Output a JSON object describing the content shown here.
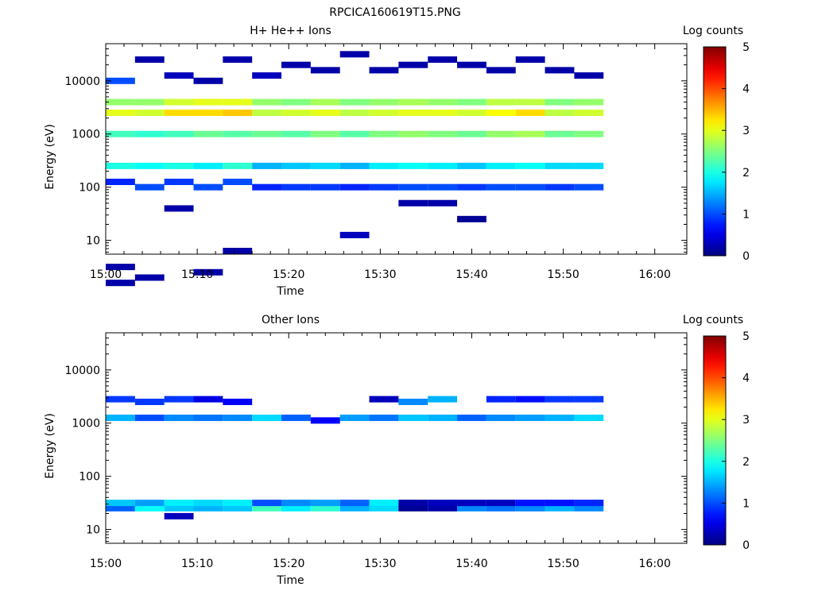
{
  "figure": {
    "title": "RPCICA160619T15.PNG"
  },
  "chart_data": [
    {
      "type": "heatmap",
      "title": "H+ He++ Ions",
      "xlabel": "Time",
      "ylabel": "Energy (eV)",
      "x_ticks": [
        "15:00",
        "15:10",
        "15:20",
        "15:30",
        "15:40",
        "15:50",
        "16:00"
      ],
      "y_ticks": [
        "10",
        "100",
        "1000",
        "10000"
      ],
      "y_scale": "log",
      "ylim": [
        5.5,
        50000
      ],
      "colorbar": {
        "label": "Log counts",
        "ticks": [
          "0",
          "1",
          "2",
          "3",
          "4",
          "5"
        ],
        "range": [
          0,
          5
        ],
        "colormap": "jet"
      },
      "x_bins_start_minutes": [
        0,
        3.2,
        6.4,
        9.6,
        12.8,
        16.0,
        19.2,
        22.4,
        25.6,
        28.8,
        32.0,
        35.2,
        38.4,
        41.6,
        44.8,
        48.0,
        51.2
      ],
      "bin_width_minutes": 3.2,
      "last_bin_end_minutes": 54.4,
      "cells": [
        {
          "x": 0,
          "e": 0.2,
          "v": 0.2
        },
        {
          "x": 0,
          "e": 0.5,
          "v": 0.2
        },
        {
          "x": 0,
          "e": 2.1,
          "v": 0.8
        },
        {
          "x": 0,
          "e": 2.4,
          "v": 2.0
        },
        {
          "x": 0,
          "e": 3.0,
          "v": 2.2
        },
        {
          "x": 0,
          "e": 3.4,
          "v": 3.0
        },
        {
          "x": 0,
          "e": 3.6,
          "v": 2.6
        },
        {
          "x": 0,
          "e": 4.0,
          "v": 1.0
        },
        {
          "x": 1,
          "e": 0.3,
          "v": 0.2
        },
        {
          "x": 1,
          "e": 2.0,
          "v": 1.0
        },
        {
          "x": 1,
          "e": 2.4,
          "v": 1.9
        },
        {
          "x": 1,
          "e": 3.0,
          "v": 2.1
        },
        {
          "x": 1,
          "e": 3.4,
          "v": 2.9
        },
        {
          "x": 1,
          "e": 3.6,
          "v": 2.6
        },
        {
          "x": 1,
          "e": 4.4,
          "v": 0.2
        },
        {
          "x": 2,
          "e": 1.6,
          "v": 0.2
        },
        {
          "x": 2,
          "e": 2.1,
          "v": 0.9
        },
        {
          "x": 2,
          "e": 2.4,
          "v": 2.0
        },
        {
          "x": 2,
          "e": 3.0,
          "v": 2.2
        },
        {
          "x": 2,
          "e": 3.4,
          "v": 3.3
        },
        {
          "x": 2,
          "e": 3.6,
          "v": 2.9
        },
        {
          "x": 2,
          "e": 4.1,
          "v": 0.3
        },
        {
          "x": 3,
          "e": 0.4,
          "v": 0.2
        },
        {
          "x": 3,
          "e": 2.0,
          "v": 1.0
        },
        {
          "x": 3,
          "e": 2.4,
          "v": 1.8
        },
        {
          "x": 3,
          "e": 3.0,
          "v": 2.4
        },
        {
          "x": 3,
          "e": 3.4,
          "v": 3.3
        },
        {
          "x": 3,
          "e": 3.6,
          "v": 3.0
        },
        {
          "x": 3,
          "e": 4.0,
          "v": 0.2
        },
        {
          "x": 4,
          "e": 0.8,
          "v": 0.2
        },
        {
          "x": 4,
          "e": 2.1,
          "v": 1.0
        },
        {
          "x": 4,
          "e": 2.4,
          "v": 2.1
        },
        {
          "x": 4,
          "e": 3.0,
          "v": 2.3
        },
        {
          "x": 4,
          "e": 3.4,
          "v": 3.4
        },
        {
          "x": 4,
          "e": 3.6,
          "v": 3.0
        },
        {
          "x": 4,
          "e": 4.4,
          "v": 0.2
        },
        {
          "x": 5,
          "e": 2.0,
          "v": 0.8
        },
        {
          "x": 5,
          "e": 2.4,
          "v": 1.5
        },
        {
          "x": 5,
          "e": 3.0,
          "v": 2.4
        },
        {
          "x": 5,
          "e": 3.4,
          "v": 2.8
        },
        {
          "x": 5,
          "e": 3.6,
          "v": 2.6
        },
        {
          "x": 5,
          "e": 4.1,
          "v": 0.3
        },
        {
          "x": 6,
          "e": 2.0,
          "v": 0.9
        },
        {
          "x": 6,
          "e": 2.4,
          "v": 1.6
        },
        {
          "x": 6,
          "e": 3.0,
          "v": 2.3
        },
        {
          "x": 6,
          "e": 3.4,
          "v": 2.9
        },
        {
          "x": 6,
          "e": 3.6,
          "v": 2.5
        },
        {
          "x": 6,
          "e": 4.3,
          "v": 0.2
        },
        {
          "x": 7,
          "e": 2.0,
          "v": 0.9
        },
        {
          "x": 7,
          "e": 2.4,
          "v": 1.7
        },
        {
          "x": 7,
          "e": 3.0,
          "v": 2.5
        },
        {
          "x": 7,
          "e": 3.4,
          "v": 3.0
        },
        {
          "x": 7,
          "e": 3.6,
          "v": 2.7
        },
        {
          "x": 7,
          "e": 4.2,
          "v": 0.2
        },
        {
          "x": 8,
          "e": 1.1,
          "v": 0.3
        },
        {
          "x": 8,
          "e": 2.0,
          "v": 0.8
        },
        {
          "x": 8,
          "e": 2.4,
          "v": 1.5
        },
        {
          "x": 8,
          "e": 3.0,
          "v": 2.3
        },
        {
          "x": 8,
          "e": 3.4,
          "v": 2.8
        },
        {
          "x": 8,
          "e": 3.6,
          "v": 2.5
        },
        {
          "x": 8,
          "e": 4.5,
          "v": 0.2
        },
        {
          "x": 9,
          "e": 2.0,
          "v": 0.9
        },
        {
          "x": 9,
          "e": 2.4,
          "v": 1.8
        },
        {
          "x": 9,
          "e": 3.0,
          "v": 2.5
        },
        {
          "x": 9,
          "e": 3.4,
          "v": 2.9
        },
        {
          "x": 9,
          "e": 3.6,
          "v": 2.6
        },
        {
          "x": 9,
          "e": 4.2,
          "v": 0.2
        },
        {
          "x": 10,
          "e": 1.7,
          "v": 0.2
        },
        {
          "x": 10,
          "e": 2.0,
          "v": 1.0
        },
        {
          "x": 10,
          "e": 2.4,
          "v": 1.9
        },
        {
          "x": 10,
          "e": 3.0,
          "v": 2.6
        },
        {
          "x": 10,
          "e": 3.4,
          "v": 3.0
        },
        {
          "x": 10,
          "e": 3.6,
          "v": 2.7
        },
        {
          "x": 10,
          "e": 4.3,
          "v": 0.2
        },
        {
          "x": 11,
          "e": 1.7,
          "v": 0.2
        },
        {
          "x": 11,
          "e": 2.0,
          "v": 1.0
        },
        {
          "x": 11,
          "e": 2.4,
          "v": 1.8
        },
        {
          "x": 11,
          "e": 3.0,
          "v": 2.5
        },
        {
          "x": 11,
          "e": 3.4,
          "v": 3.0
        },
        {
          "x": 11,
          "e": 3.6,
          "v": 2.6
        },
        {
          "x": 11,
          "e": 4.4,
          "v": 0.2
        },
        {
          "x": 12,
          "e": 1.4,
          "v": 0.1
        },
        {
          "x": 12,
          "e": 2.0,
          "v": 0.9
        },
        {
          "x": 12,
          "e": 2.4,
          "v": 1.6
        },
        {
          "x": 12,
          "e": 3.0,
          "v": 2.4
        },
        {
          "x": 12,
          "e": 3.4,
          "v": 2.9
        },
        {
          "x": 12,
          "e": 3.6,
          "v": 2.5
        },
        {
          "x": 12,
          "e": 4.3,
          "v": 0.2
        },
        {
          "x": 13,
          "e": 2.0,
          "v": 1.0
        },
        {
          "x": 13,
          "e": 2.4,
          "v": 1.8
        },
        {
          "x": 13,
          "e": 3.0,
          "v": 2.6
        },
        {
          "x": 13,
          "e": 3.4,
          "v": 3.1
        },
        {
          "x": 13,
          "e": 3.6,
          "v": 2.8
        },
        {
          "x": 13,
          "e": 4.2,
          "v": 0.2
        },
        {
          "x": 14,
          "e": 2.0,
          "v": 1.0
        },
        {
          "x": 14,
          "e": 2.4,
          "v": 1.9
        },
        {
          "x": 14,
          "e": 3.0,
          "v": 2.7
        },
        {
          "x": 14,
          "e": 3.4,
          "v": 3.3
        },
        {
          "x": 14,
          "e": 3.6,
          "v": 2.8
        },
        {
          "x": 14,
          "e": 4.4,
          "v": 0.2
        },
        {
          "x": 15,
          "e": 2.0,
          "v": 0.9
        },
        {
          "x": 15,
          "e": 2.4,
          "v": 1.7
        },
        {
          "x": 15,
          "e": 3.0,
          "v": 2.4
        },
        {
          "x": 15,
          "e": 3.4,
          "v": 2.8
        },
        {
          "x": 15,
          "e": 3.6,
          "v": 2.5
        },
        {
          "x": 15,
          "e": 4.2,
          "v": 0.2
        },
        {
          "x": 16,
          "e": 2.0,
          "v": 1.0
        },
        {
          "x": 16,
          "e": 2.4,
          "v": 1.7
        },
        {
          "x": 16,
          "e": 3.0,
          "v": 2.5
        },
        {
          "x": 16,
          "e": 3.4,
          "v": 2.9
        },
        {
          "x": 16,
          "e": 3.6,
          "v": 2.6
        },
        {
          "x": 16,
          "e": 4.1,
          "v": 0.2
        }
      ]
    },
    {
      "type": "heatmap",
      "title": "Other Ions",
      "xlabel": "Time",
      "ylabel": "Energy (eV)",
      "x_ticks": [
        "15:00",
        "15:10",
        "15:20",
        "15:30",
        "15:40",
        "15:50",
        "16:00"
      ],
      "y_ticks": [
        "10",
        "100",
        "1000",
        "10000"
      ],
      "y_scale": "log",
      "ylim": [
        5.5,
        50000
      ],
      "colorbar": {
        "label": "Log counts",
        "ticks": [
          "0",
          "1",
          "2",
          "3",
          "4",
          "5"
        ],
        "range": [
          0,
          5
        ],
        "colormap": "jet"
      },
      "x_bins_start_minutes": [
        0,
        3.2,
        6.4,
        9.6,
        12.8,
        16.0,
        19.2,
        22.4,
        25.6,
        28.8,
        32.0,
        35.2,
        38.4,
        41.6,
        44.8,
        48.0,
        51.2
      ],
      "bin_width_minutes": 3.2,
      "last_bin_end_minutes": 54.4,
      "cells": [
        {
          "x": 0,
          "e": 1.4,
          "v": 1.1
        },
        {
          "x": 0,
          "e": 1.5,
          "v": 1.6
        },
        {
          "x": 0,
          "e": 3.1,
          "v": 1.5
        },
        {
          "x": 0,
          "e": 3.45,
          "v": 0.9
        },
        {
          "x": 1,
          "e": 1.4,
          "v": 1.9
        },
        {
          "x": 1,
          "e": 1.5,
          "v": 1.4
        },
        {
          "x": 1,
          "e": 3.1,
          "v": 1.0
        },
        {
          "x": 1,
          "e": 3.4,
          "v": 0.9
        },
        {
          "x": 2,
          "e": 1.25,
          "v": 0.3
        },
        {
          "x": 2,
          "e": 1.4,
          "v": 1.6
        },
        {
          "x": 2,
          "e": 1.5,
          "v": 1.8
        },
        {
          "x": 2,
          "e": 3.1,
          "v": 1.3
        },
        {
          "x": 2,
          "e": 3.45,
          "v": 0.9
        },
        {
          "x": 3,
          "e": 1.4,
          "v": 1.5
        },
        {
          "x": 3,
          "e": 1.5,
          "v": 1.7
        },
        {
          "x": 3,
          "e": 3.1,
          "v": 1.2
        },
        {
          "x": 3,
          "e": 3.45,
          "v": 0.5
        },
        {
          "x": 4,
          "e": 1.4,
          "v": 1.6
        },
        {
          "x": 4,
          "e": 1.5,
          "v": 1.8
        },
        {
          "x": 4,
          "e": 3.1,
          "v": 1.3
        },
        {
          "x": 4,
          "e": 3.4,
          "v": 0.6
        },
        {
          "x": 5,
          "e": 1.4,
          "v": 2.2
        },
        {
          "x": 5,
          "e": 1.5,
          "v": 1.0
        },
        {
          "x": 5,
          "e": 3.1,
          "v": 1.7
        },
        {
          "x": 6,
          "e": 1.4,
          "v": 1.8
        },
        {
          "x": 6,
          "e": 1.5,
          "v": 1.3
        },
        {
          "x": 6,
          "e": 3.1,
          "v": 1.1
        },
        {
          "x": 7,
          "e": 1.4,
          "v": 2.1
        },
        {
          "x": 7,
          "e": 1.5,
          "v": 1.4
        },
        {
          "x": 7,
          "e": 3.05,
          "v": 0.6
        },
        {
          "x": 8,
          "e": 1.4,
          "v": 1.5
        },
        {
          "x": 8,
          "e": 1.5,
          "v": 1.1
        },
        {
          "x": 8,
          "e": 3.1,
          "v": 1.4
        },
        {
          "x": 9,
          "e": 1.4,
          "v": 1.7
        },
        {
          "x": 9,
          "e": 1.5,
          "v": 1.8
        },
        {
          "x": 9,
          "e": 3.1,
          "v": 1.2
        },
        {
          "x": 9,
          "e": 3.45,
          "v": 0.3
        },
        {
          "x": 10,
          "e": 1.4,
          "v": 0.1
        },
        {
          "x": 10,
          "e": 1.5,
          "v": 0.2
        },
        {
          "x": 10,
          "e": 3.1,
          "v": 1.6
        },
        {
          "x": 10,
          "e": 3.4,
          "v": 1.3
        },
        {
          "x": 11,
          "e": 1.4,
          "v": 0.2
        },
        {
          "x": 11,
          "e": 1.5,
          "v": 0.3
        },
        {
          "x": 11,
          "e": 3.1,
          "v": 1.5
        },
        {
          "x": 11,
          "e": 3.45,
          "v": 1.5
        },
        {
          "x": 12,
          "e": 1.4,
          "v": 1.3
        },
        {
          "x": 12,
          "e": 1.5,
          "v": 0.3
        },
        {
          "x": 12,
          "e": 3.1,
          "v": 1.1
        },
        {
          "x": 13,
          "e": 1.4,
          "v": 1.2
        },
        {
          "x": 13,
          "e": 1.5,
          "v": 0.3
        },
        {
          "x": 13,
          "e": 3.1,
          "v": 1.3
        },
        {
          "x": 13,
          "e": 3.45,
          "v": 0.8
        },
        {
          "x": 14,
          "e": 1.4,
          "v": 1.3
        },
        {
          "x": 14,
          "e": 1.5,
          "v": 0.7
        },
        {
          "x": 14,
          "e": 3.1,
          "v": 1.4
        },
        {
          "x": 14,
          "e": 3.45,
          "v": 0.7
        },
        {
          "x": 15,
          "e": 1.4,
          "v": 1.5
        },
        {
          "x": 15,
          "e": 1.5,
          "v": 0.7
        },
        {
          "x": 15,
          "e": 3.1,
          "v": 1.5
        },
        {
          "x": 15,
          "e": 3.45,
          "v": 0.9
        },
        {
          "x": 16,
          "e": 1.4,
          "v": 1.3
        },
        {
          "x": 16,
          "e": 1.5,
          "v": 0.8
        },
        {
          "x": 16,
          "e": 3.1,
          "v": 1.7
        },
        {
          "x": 16,
          "e": 3.45,
          "v": 0.9
        }
      ]
    }
  ]
}
